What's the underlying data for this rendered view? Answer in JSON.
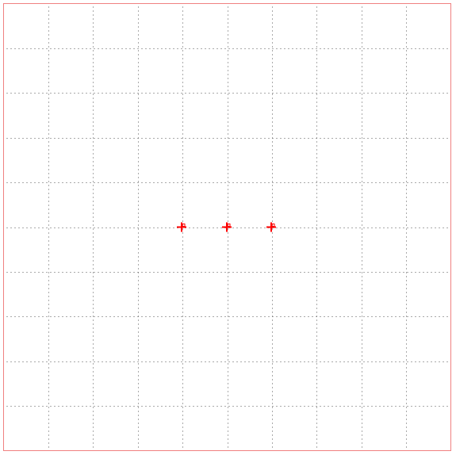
{
  "canvas": {
    "border_color": "#f08080",
    "grid_color": "#555555",
    "marker_color": "#ff0000",
    "grid_style": "dotted",
    "grid_rows": 10,
    "grid_cols": 10
  },
  "markers": [
    {
      "label": "",
      "col": 4,
      "row": 5
    },
    {
      "label": "",
      "col": 5,
      "row": 5
    },
    {
      "label": "",
      "col": 6,
      "row": 5
    }
  ]
}
